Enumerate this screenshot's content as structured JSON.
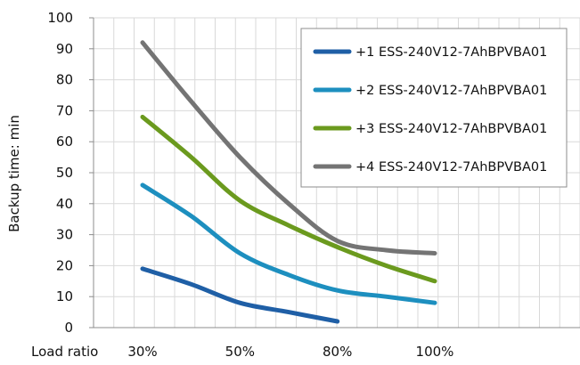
{
  "chart_data": {
    "type": "line",
    "ylabel": "Backup time: min",
    "xlabel": "Load ratio",
    "x_ticks": [
      "30%",
      "50%",
      "80%",
      "100%"
    ],
    "x_tick_values": [
      30,
      50,
      70,
      90
    ],
    "xlim": [
      30,
      90
    ],
    "ylim": [
      0,
      100
    ],
    "y_ticks": [
      0,
      10,
      20,
      30,
      40,
      50,
      60,
      70,
      80,
      90,
      100
    ],
    "grid": true,
    "legend_position": "top-right",
    "series": [
      {
        "name": "+1 ESS-240V12-7AhBPVBA01",
        "color": "#1f5fa6",
        "x": [
          30,
          40,
          50,
          60,
          70
        ],
        "y": [
          19,
          14,
          8,
          5,
          2
        ]
      },
      {
        "name": "+2 ESS-240V12-7AhBPVBA01",
        "color": "#1d8fbf",
        "x": [
          30,
          40,
          50,
          60,
          70,
          80,
          90
        ],
        "y": [
          46,
          36,
          24,
          17,
          12,
          10,
          8
        ]
      },
      {
        "name": "+3 ESS-240V12-7AhBPVBA01",
        "color": "#6b9a1e",
        "x": [
          30,
          40,
          50,
          60,
          70,
          80,
          90
        ],
        "y": [
          68,
          55,
          41,
          33,
          26,
          20,
          15
        ]
      },
      {
        "name": "+4 ESS-240V12-7AhBPVBA01",
        "color": "#747474",
        "x": [
          30,
          40,
          50,
          60,
          70,
          80,
          90
        ],
        "y": [
          92,
          73,
          55,
          40,
          28,
          25,
          24
        ]
      }
    ]
  }
}
